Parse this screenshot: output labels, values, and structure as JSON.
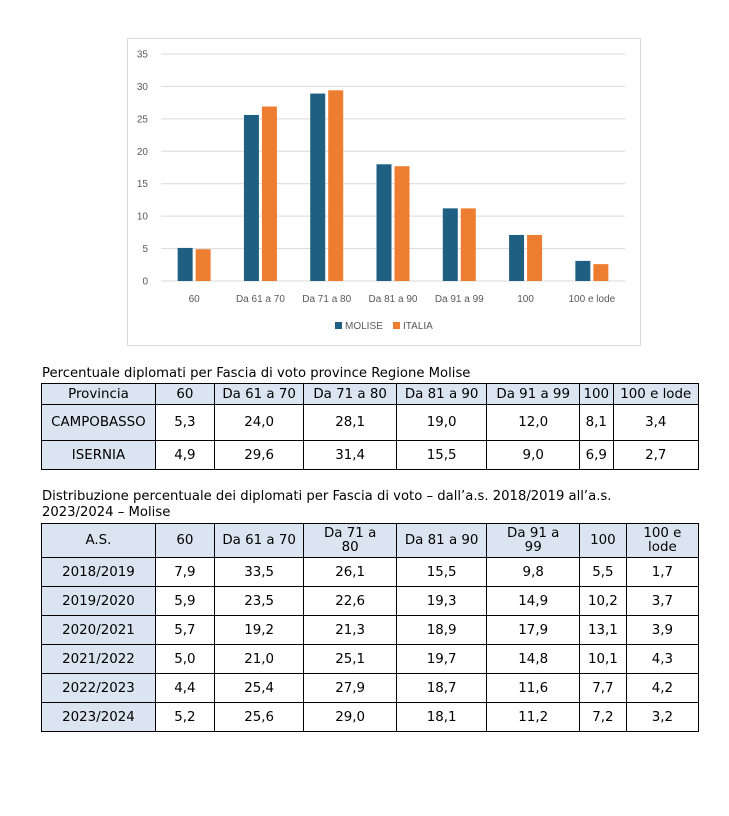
{
  "chart_data": {
    "type": "bar",
    "categories": [
      "60",
      "Da 61 a 70",
      "Da 71 a 80",
      "Da 81 a 90",
      "Da 91 a 99",
      "100",
      "100 e lode"
    ],
    "series": [
      {
        "name": "MOLISE",
        "color": "#1f5f82",
        "values": [
          5.1,
          25.6,
          28.9,
          18.0,
          11.2,
          7.1,
          3.1
        ]
      },
      {
        "name": "ITALIA",
        "color": "#ed7d31",
        "values": [
          4.9,
          26.9,
          29.4,
          17.7,
          11.2,
          7.1,
          2.6
        ]
      }
    ],
    "yticks": [
      "0",
      "5",
      "10",
      "15",
      "20",
      "25",
      "30",
      "35"
    ],
    "ylim": [
      0,
      35
    ],
    "grid": true,
    "legend_position": "bottom"
  },
  "table1": {
    "caption": "Percentuale diplomati per Fascia di voto province Regione Molise",
    "headers": [
      "Provincia",
      "60",
      "Da 61 a 70",
      "Da 71 a 80",
      "Da 81 a 90",
      "Da 91 a 99",
      "100",
      "100 e lode"
    ],
    "rows": [
      [
        "CAMPOBASSO",
        "5,3",
        "24,0",
        "28,1",
        "19,0",
        "12,0",
        "8,1",
        "3,4"
      ],
      [
        "ISERNIA",
        "4,9",
        "29,6",
        "31,4",
        "15,5",
        "9,0",
        "6,9",
        "2,7"
      ]
    ]
  },
  "table2": {
    "caption_line1": "Distribuzione percentuale dei diplomati per Fascia di voto – dall’a.s. 2018/2019 all’a.s.",
    "caption_line2": "2023/2024 – Molise",
    "headers": [
      "A.S.",
      "60",
      "Da 61 a 70",
      "Da 71 a\n80",
      "Da 81 a 90",
      "Da 91 a\n99",
      "100",
      "100 e\nlode"
    ],
    "rows": [
      [
        "2018/2019",
        "7,9",
        "33,5",
        "26,1",
        "15,5",
        "9,8",
        "5,5",
        "1,7"
      ],
      [
        "2019/2020",
        "5,9",
        "23,5",
        "22,6",
        "19,3",
        "14,9",
        "10,2",
        "3,7"
      ],
      [
        "2020/2021",
        "5,7",
        "19,2",
        "21,3",
        "18,9",
        "17,9",
        "13,1",
        "3,9"
      ],
      [
        "2021/2022",
        "5,0",
        "21,0",
        "25,1",
        "19,7",
        "14,8",
        "10,1",
        "4,3"
      ],
      [
        "2022/2023",
        "4,4",
        "25,4",
        "27,9",
        "18,7",
        "11,6",
        "7,7",
        "4,2"
      ],
      [
        "2023/2024",
        "5,2",
        "25,6",
        "29,0",
        "18,1",
        "11,2",
        "7,2",
        "3,2"
      ]
    ]
  }
}
